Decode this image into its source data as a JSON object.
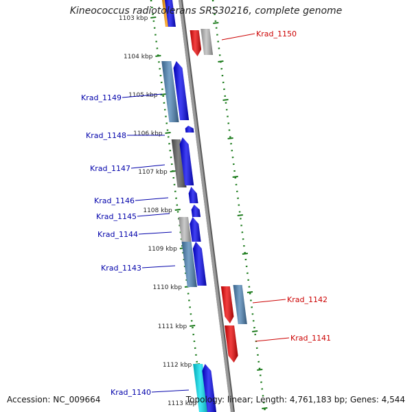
{
  "title": "Kineococcus radiotolerans SRS30216, complete genome",
  "footer": {
    "accession": "Accession: NC_009664",
    "summary": "Topology: linear; Length: 4,761,183 bp; Genes: 4,544"
  },
  "colors": {
    "forward_label": "#0000aa",
    "reverse_label": "#cc0000",
    "backbone": "#8a8a8a",
    "tick": "#1a7a1a",
    "blue": "#0000ee",
    "steel_blue": "#4a82b5",
    "red": "#ee0000",
    "gray": "#b8b8b8",
    "dark_gray": "#5a5a5a",
    "orange": "#ff9900",
    "cyan": "#00e0f0"
  },
  "ticks": [
    {
      "label": "1103 kbp"
    },
    {
      "label": "1104 kbp"
    },
    {
      "label": "1105 kbp"
    },
    {
      "label": "1106 kbp"
    },
    {
      "label": "1107 kbp"
    },
    {
      "label": "1108 kbp"
    },
    {
      "label": "1109 kbp"
    },
    {
      "label": "1110 kbp"
    },
    {
      "label": "1111 kbp"
    },
    {
      "label": "1112 kbp"
    },
    {
      "label": "1113 kbp"
    }
  ],
  "genes": [
    {
      "name": "Krad_1150",
      "strand": "reverse"
    },
    {
      "name": "Krad_1149",
      "strand": "forward"
    },
    {
      "name": "Krad_1148",
      "strand": "forward"
    },
    {
      "name": "Krad_1147",
      "strand": "forward"
    },
    {
      "name": "Krad_1146",
      "strand": "forward"
    },
    {
      "name": "Krad_1145",
      "strand": "forward"
    },
    {
      "name": "Krad_1144",
      "strand": "forward"
    },
    {
      "name": "Krad_1143",
      "strand": "forward"
    },
    {
      "name": "Krad_1142",
      "strand": "reverse"
    },
    {
      "name": "Krad_1141",
      "strand": "reverse"
    },
    {
      "name": "Krad_1140",
      "strand": "forward"
    }
  ]
}
